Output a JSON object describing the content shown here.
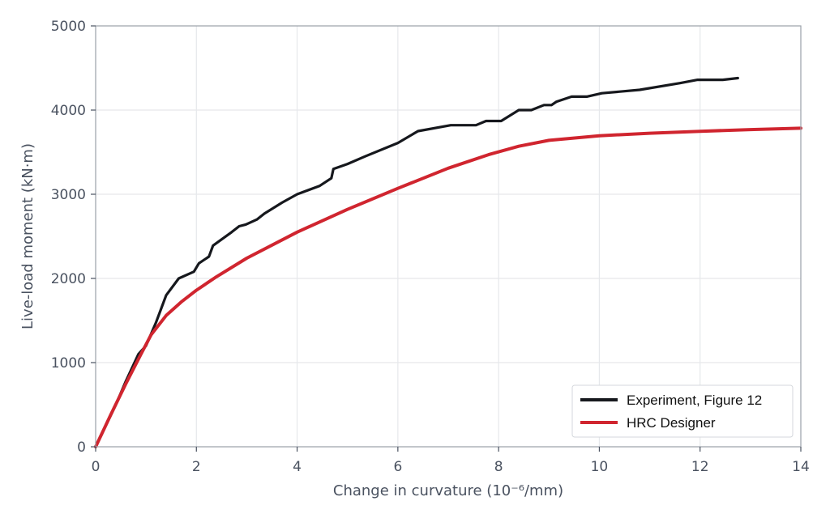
{
  "chart_data": {
    "type": "line",
    "xlabel": "Change in curvature (10⁻⁶/mm)",
    "ylabel": "Live-load moment (kN·m)",
    "xlim": [
      0,
      14
    ],
    "ylim": [
      0,
      5000
    ],
    "xticks": [
      0,
      2,
      4,
      6,
      8,
      10,
      12,
      14
    ],
    "yticks": [
      0,
      1000,
      2000,
      3000,
      4000,
      5000
    ],
    "grid": true,
    "legend_position": "bottom-right",
    "series": [
      {
        "name": "Experiment, Figure 12",
        "color": "#16181d",
        "x": [
          0,
          0.2,
          0.4,
          0.6,
          0.85,
          1.0,
          1.2,
          1.4,
          1.65,
          1.95,
          2.05,
          2.25,
          2.33,
          2.7,
          2.85,
          2.98,
          3.2,
          3.35,
          3.7,
          4.0,
          4.45,
          4.68,
          4.72,
          5.0,
          5.35,
          6.0,
          6.4,
          7.05,
          7.55,
          7.75,
          8.05,
          8.4,
          8.65,
          8.9,
          9.05,
          9.15,
          9.45,
          9.75,
          10.05,
          10.8,
          11.6,
          11.95,
          12.45,
          12.75
        ],
        "y": [
          0,
          250,
          500,
          780,
          1100,
          1200,
          1480,
          1800,
          2000,
          2080,
          2180,
          2260,
          2390,
          2550,
          2620,
          2640,
          2700,
          2770,
          2900,
          3000,
          3100,
          3190,
          3300,
          3360,
          3450,
          3610,
          3750,
          3820,
          3820,
          3870,
          3870,
          4000,
          4000,
          4060,
          4060,
          4100,
          4160,
          4160,
          4200,
          4240,
          4320,
          4360,
          4360,
          4380
        ]
      },
      {
        "name": "HRC Designer",
        "color": "#d0252f",
        "x": [
          0,
          0.3,
          0.6,
          0.9,
          1.1,
          1.4,
          1.7,
          2.0,
          2.4,
          3.0,
          4.0,
          5.0,
          6.0,
          7.0,
          7.8,
          8.4,
          9.0,
          10.0,
          11.0,
          12.0,
          13.0,
          14.0
        ],
        "y": [
          0,
          380,
          750,
          1100,
          1330,
          1560,
          1720,
          1860,
          2020,
          2240,
          2550,
          2820,
          3070,
          3310,
          3470,
          3570,
          3640,
          3695,
          3725,
          3748,
          3768,
          3785
        ]
      }
    ]
  }
}
